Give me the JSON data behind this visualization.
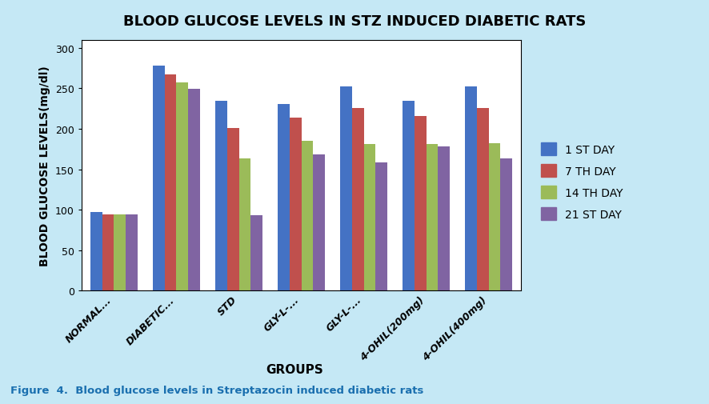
{
  "title": "BLOOD GLUCOSE LEVELS IN STZ INDUCED DIABETIC RATS",
  "xlabel": "GROUPS",
  "ylabel": "BLOOD GLUCOSE LEVELS(mg/dl)",
  "categories": [
    "NORMAL...",
    "DIABETIC...",
    "STD",
    "GLY-L-...",
    "GLY-L-...",
    "4-OHIL(200mg)",
    "4-OHIL(400mg)"
  ],
  "series": {
    "1 ST DAY": [
      97,
      278,
      235,
      231,
      252,
      235,
      252
    ],
    "7 TH DAY": [
      94,
      267,
      201,
      214,
      226,
      216,
      226
    ],
    "14 TH DAY": [
      94,
      257,
      163,
      185,
      181,
      181,
      182
    ],
    "21 ST DAY": [
      94,
      249,
      93,
      168,
      158,
      178,
      163
    ]
  },
  "colors": {
    "1 ST DAY": "#4472C4",
    "7 TH DAY": "#C0504D",
    "14 TH DAY": "#9BBB59",
    "21 ST DAY": "#8064A2"
  },
  "ylim": [
    0,
    310
  ],
  "yticks": [
    0,
    50,
    100,
    150,
    200,
    250,
    300
  ],
  "background_color": "#C5E8F5",
  "plot_bg_color": "#FFFFFF",
  "caption": "Figure  4.  Blood glucose levels in Streptazocin induced diabetic rats",
  "title_fontsize": 13,
  "axis_label_fontsize": 10,
  "tick_fontsize": 9,
  "legend_fontsize": 10,
  "caption_fontsize": 9.5,
  "caption_color": "#1A6FAF"
}
